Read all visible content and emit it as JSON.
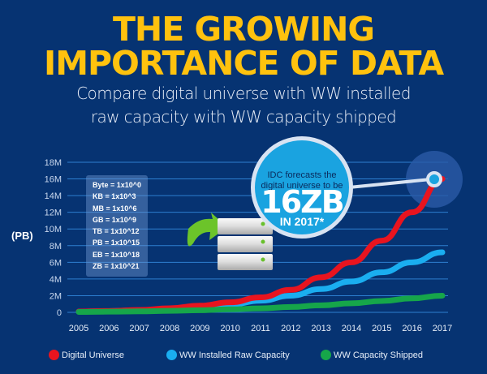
{
  "header": {
    "title_line1": "THE GROWING",
    "title_line2": "IMPORTANCE OF DATA",
    "subtitle_line1": "Compare digital universe with WW installed",
    "subtitle_line2": "raw capacity with WW capacity shipped"
  },
  "units": {
    "axis_unit": "(PB)",
    "list": [
      "Byte = 1x10^0",
      "KB = 1x10^3",
      "MB = 1x10^6",
      "GB = 1x10^9",
      "TB = 1x10^12",
      "PB = 1x10^15",
      "EB = 1x10^18",
      "ZB = 1x10^21"
    ]
  },
  "callout": {
    "line1": "IDC forecasts the",
    "line2": "digital universe to be",
    "big": "16ZB",
    "year": "IN 2017*"
  },
  "icons": [
    "server-stack-icon",
    "green-arrow-icon"
  ],
  "colors": {
    "background": "#063372",
    "title": "#ffc20e",
    "digital_universe": "#e8141f",
    "installed_raw": "#1aaef0",
    "capacity_shipped": "#16a64a",
    "gridline": "#2d7fd0"
  },
  "chart_data": {
    "type": "line",
    "title": "THE GROWING IMPORTANCE OF DATA",
    "xlabel": "",
    "ylabel": "(PB)",
    "x": [
      2005,
      2006,
      2007,
      2008,
      2009,
      2010,
      2011,
      2012,
      2013,
      2014,
      2015,
      2016,
      2017
    ],
    "ylim": [
      0,
      18000000
    ],
    "ytick_labels": [
      "0",
      "2M",
      "4M",
      "6M",
      "8M",
      "10M",
      "12M",
      "14M",
      "16M",
      "18M"
    ],
    "ytick_values": [
      0,
      2000000,
      4000000,
      6000000,
      8000000,
      10000000,
      12000000,
      14000000,
      16000000,
      18000000
    ],
    "grid": true,
    "legend_position": "bottom",
    "series": [
      {
        "name": "Digital Universe",
        "color": "#e8141f",
        "values": [
          100000,
          160000,
          280000,
          490000,
          800000,
          1200000,
          1800000,
          2700000,
          4200000,
          6000000,
          8600000,
          12000000,
          16000000
        ]
      },
      {
        "name": "WW Installed Raw Capacity",
        "color": "#1aaef0",
        "values": [
          90000,
          150000,
          260000,
          420000,
          650000,
          950000,
          1400000,
          2000000,
          2800000,
          3700000,
          4800000,
          6000000,
          7200000
        ]
      },
      {
        "name": "WW Capacity Shipped",
        "color": "#16a64a",
        "values": [
          50000,
          80000,
          120000,
          180000,
          260000,
          360000,
          480000,
          640000,
          840000,
          1080000,
          1360000,
          1680000,
          2000000
        ]
      }
    ]
  }
}
